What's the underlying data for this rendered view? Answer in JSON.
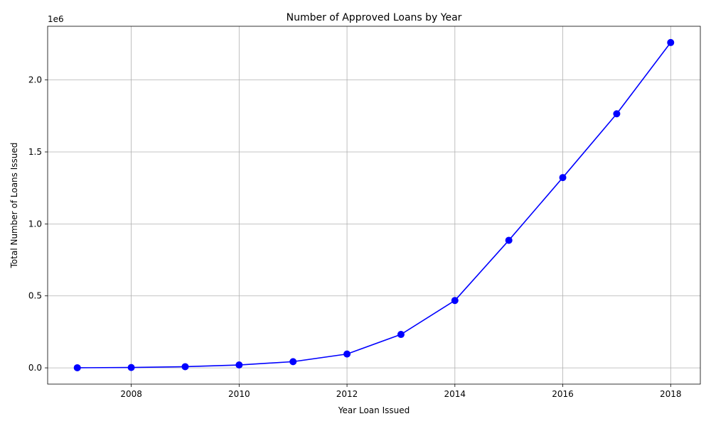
{
  "chart_data": {
    "type": "line",
    "title": "Number of Approved Loans by Year",
    "xlabel": "Year Loan Issued",
    "ylabel": "Total Number of Loans Issued",
    "y_offset_label": "1e6",
    "grid": true,
    "series": [
      {
        "color": "#0000ff",
        "marker": "circle",
        "x": [
          2007,
          2008,
          2009,
          2010,
          2011,
          2012,
          2013,
          2014,
          2015,
          2016,
          2017,
          2018
        ],
        "y": [
          600,
          2400,
          8000,
          20000,
          43000,
          96000,
          232000,
          468000,
          886000,
          1322000,
          1765000,
          2260000
        ]
      }
    ],
    "xlim": [
      2006.45,
      2018.55
    ],
    "ylim": [
      -113000,
      2373000
    ],
    "xticks": [
      2008,
      2010,
      2012,
      2014,
      2016,
      2018
    ],
    "xtick_labels": [
      "2008",
      "2010",
      "2012",
      "2014",
      "2016",
      "2018"
    ],
    "yticks": [
      0,
      500000,
      1000000,
      1500000,
      2000000
    ],
    "ytick_labels": [
      "0.0",
      "0.5",
      "1.0",
      "1.5",
      "2.0"
    ]
  }
}
